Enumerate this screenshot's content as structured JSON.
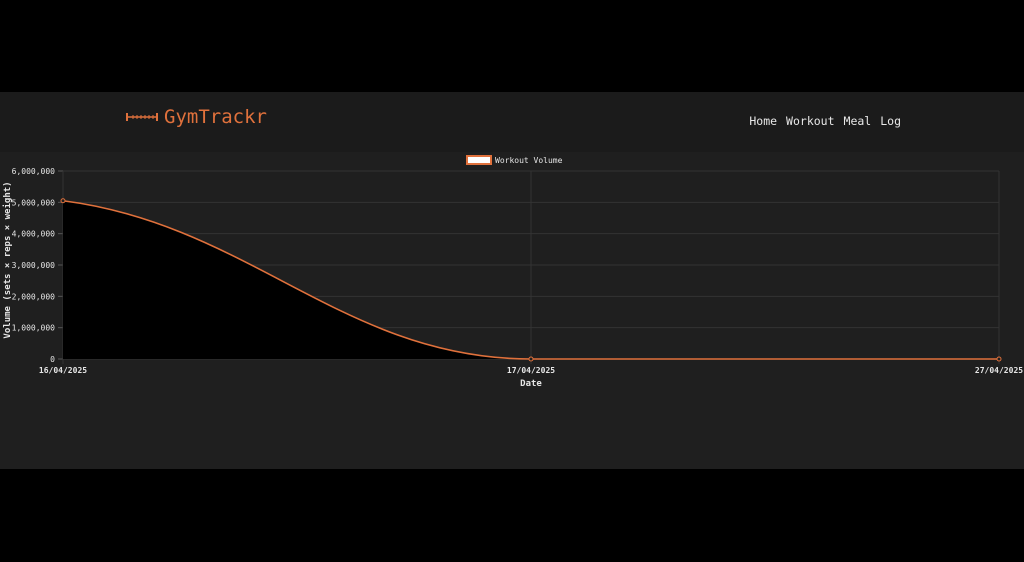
{
  "brand": {
    "name": "GymTrackr",
    "icon": "dumbbell-icon",
    "color": "#e0713c"
  },
  "nav": {
    "items": [
      "Home",
      "Workout",
      "Meal",
      "Log"
    ]
  },
  "chart_data": {
    "type": "area",
    "categories": [
      "16/04/2025",
      "17/04/2025",
      "27/04/2025"
    ],
    "series": [
      {
        "name": "Workout Volume",
        "values": [
          5050000,
          0,
          0
        ],
        "color": "#e0713c",
        "fill": "#000000"
      }
    ],
    "xlabel": "Date",
    "ylabel": "Volume (sets × reps × weight)",
    "ylim": [
      0,
      6000000
    ],
    "yticks": [
      "0",
      "1,000,000",
      "2,000,000",
      "3,000,000",
      "4,000,000",
      "5,000,000",
      "6,000,000"
    ],
    "grid": true,
    "legend": "top-center"
  }
}
